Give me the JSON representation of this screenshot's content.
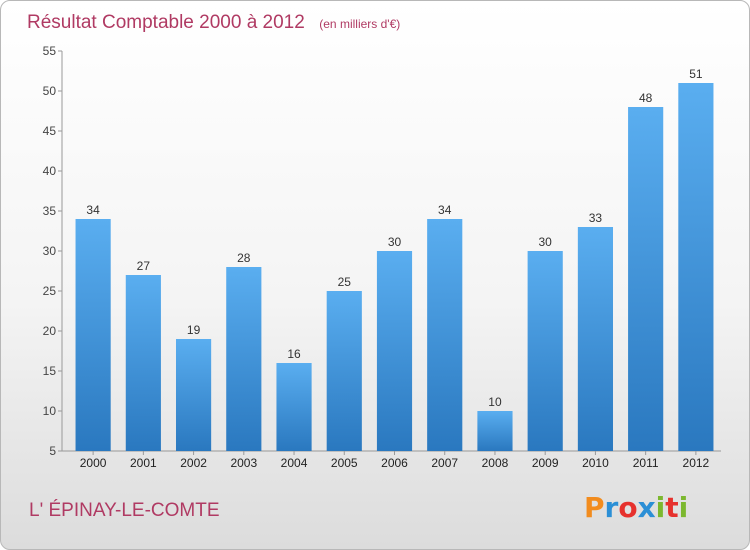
{
  "header": {
    "title": "Résultat Comptable 2000 à 2012",
    "unit": "(en milliers d'€)"
  },
  "footer": {
    "commune": "L' ÉPINAY-LE-COMTE",
    "logo": "Proxiti",
    "logo_letters": [
      "P",
      "r",
      "o",
      "x",
      "i",
      "t",
      "i"
    ],
    "logo_colors": [
      "#f28c1e",
      "#2b8fd6",
      "#e6312d",
      "#2b8fd6",
      "#7cb82f",
      "#e6312d",
      "#7cb82f"
    ]
  },
  "chart_data": {
    "type": "bar",
    "title": "Résultat Comptable 2000 à 2012",
    "subtitle": "(en milliers d'€)",
    "categories": [
      "2000",
      "2001",
      "2002",
      "2003",
      "2004",
      "2005",
      "2006",
      "2007",
      "2008",
      "2009",
      "2010",
      "2011",
      "2012"
    ],
    "values": [
      34,
      27,
      19,
      28,
      16,
      25,
      30,
      34,
      10,
      30,
      33,
      48,
      51
    ],
    "xlabel": "",
    "ylabel": "",
    "ylim": [
      5,
      55
    ],
    "yticks": [
      5,
      10,
      15,
      20,
      25,
      30,
      35,
      40,
      45,
      50,
      55
    ],
    "grid": false,
    "legend": "none",
    "bar_color": "#3a8fd8"
  }
}
